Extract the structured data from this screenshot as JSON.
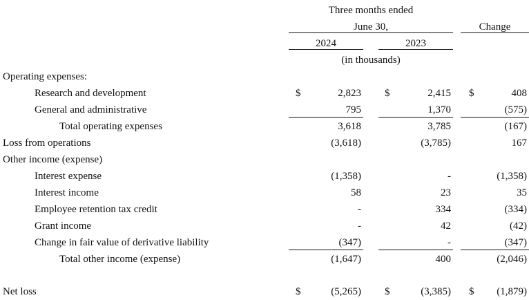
{
  "header": {
    "period_line1": "Three months ended",
    "period_line2": "June 30,",
    "change": "Change",
    "year_2024": "2024",
    "year_2023": "2023",
    "units": "(in thousands)"
  },
  "currency_symbol": "$",
  "rows": [
    {
      "label": "Operating expenses:",
      "v2024": "",
      "v2023": "",
      "change": ""
    },
    {
      "label": "Research and development",
      "v2024": "2,823",
      "v2023": "2,415",
      "change": "408"
    },
    {
      "label": "General and administrative",
      "v2024": "795",
      "v2023": "1,370",
      "change": "(575)"
    },
    {
      "label": "Total operating expenses",
      "v2024": "3,618",
      "v2023": "3,785",
      "change": "(167)"
    },
    {
      "label": "Loss from operations",
      "v2024": "(3,618)",
      "v2023": "(3,785)",
      "change": "167"
    },
    {
      "label": "Other income (expense)",
      "v2024": "",
      "v2023": "",
      "change": ""
    },
    {
      "label": "Interest expense",
      "v2024": "(1,358)",
      "v2023": "-",
      "change": "(1,358)"
    },
    {
      "label": "Interest income",
      "v2024": "58",
      "v2023": "23",
      "change": "35"
    },
    {
      "label": "Employee retention tax credit",
      "v2024": "-",
      "v2023": "334",
      "change": "(334)"
    },
    {
      "label": "Grant income",
      "v2024": "-",
      "v2023": "42",
      "change": "(42)"
    },
    {
      "label": "Change in fair value of derivative liability",
      "v2024": "(347)",
      "v2023": "-",
      "change": "(347)"
    },
    {
      "label": "Total other income (expense)",
      "v2024": "(1,647)",
      "v2023": "400",
      "change": "(2,046)"
    },
    {
      "label": "Net loss",
      "v2024": "(5,265)",
      "v2023": "(3,385)",
      "change": "(1,879)"
    }
  ]
}
